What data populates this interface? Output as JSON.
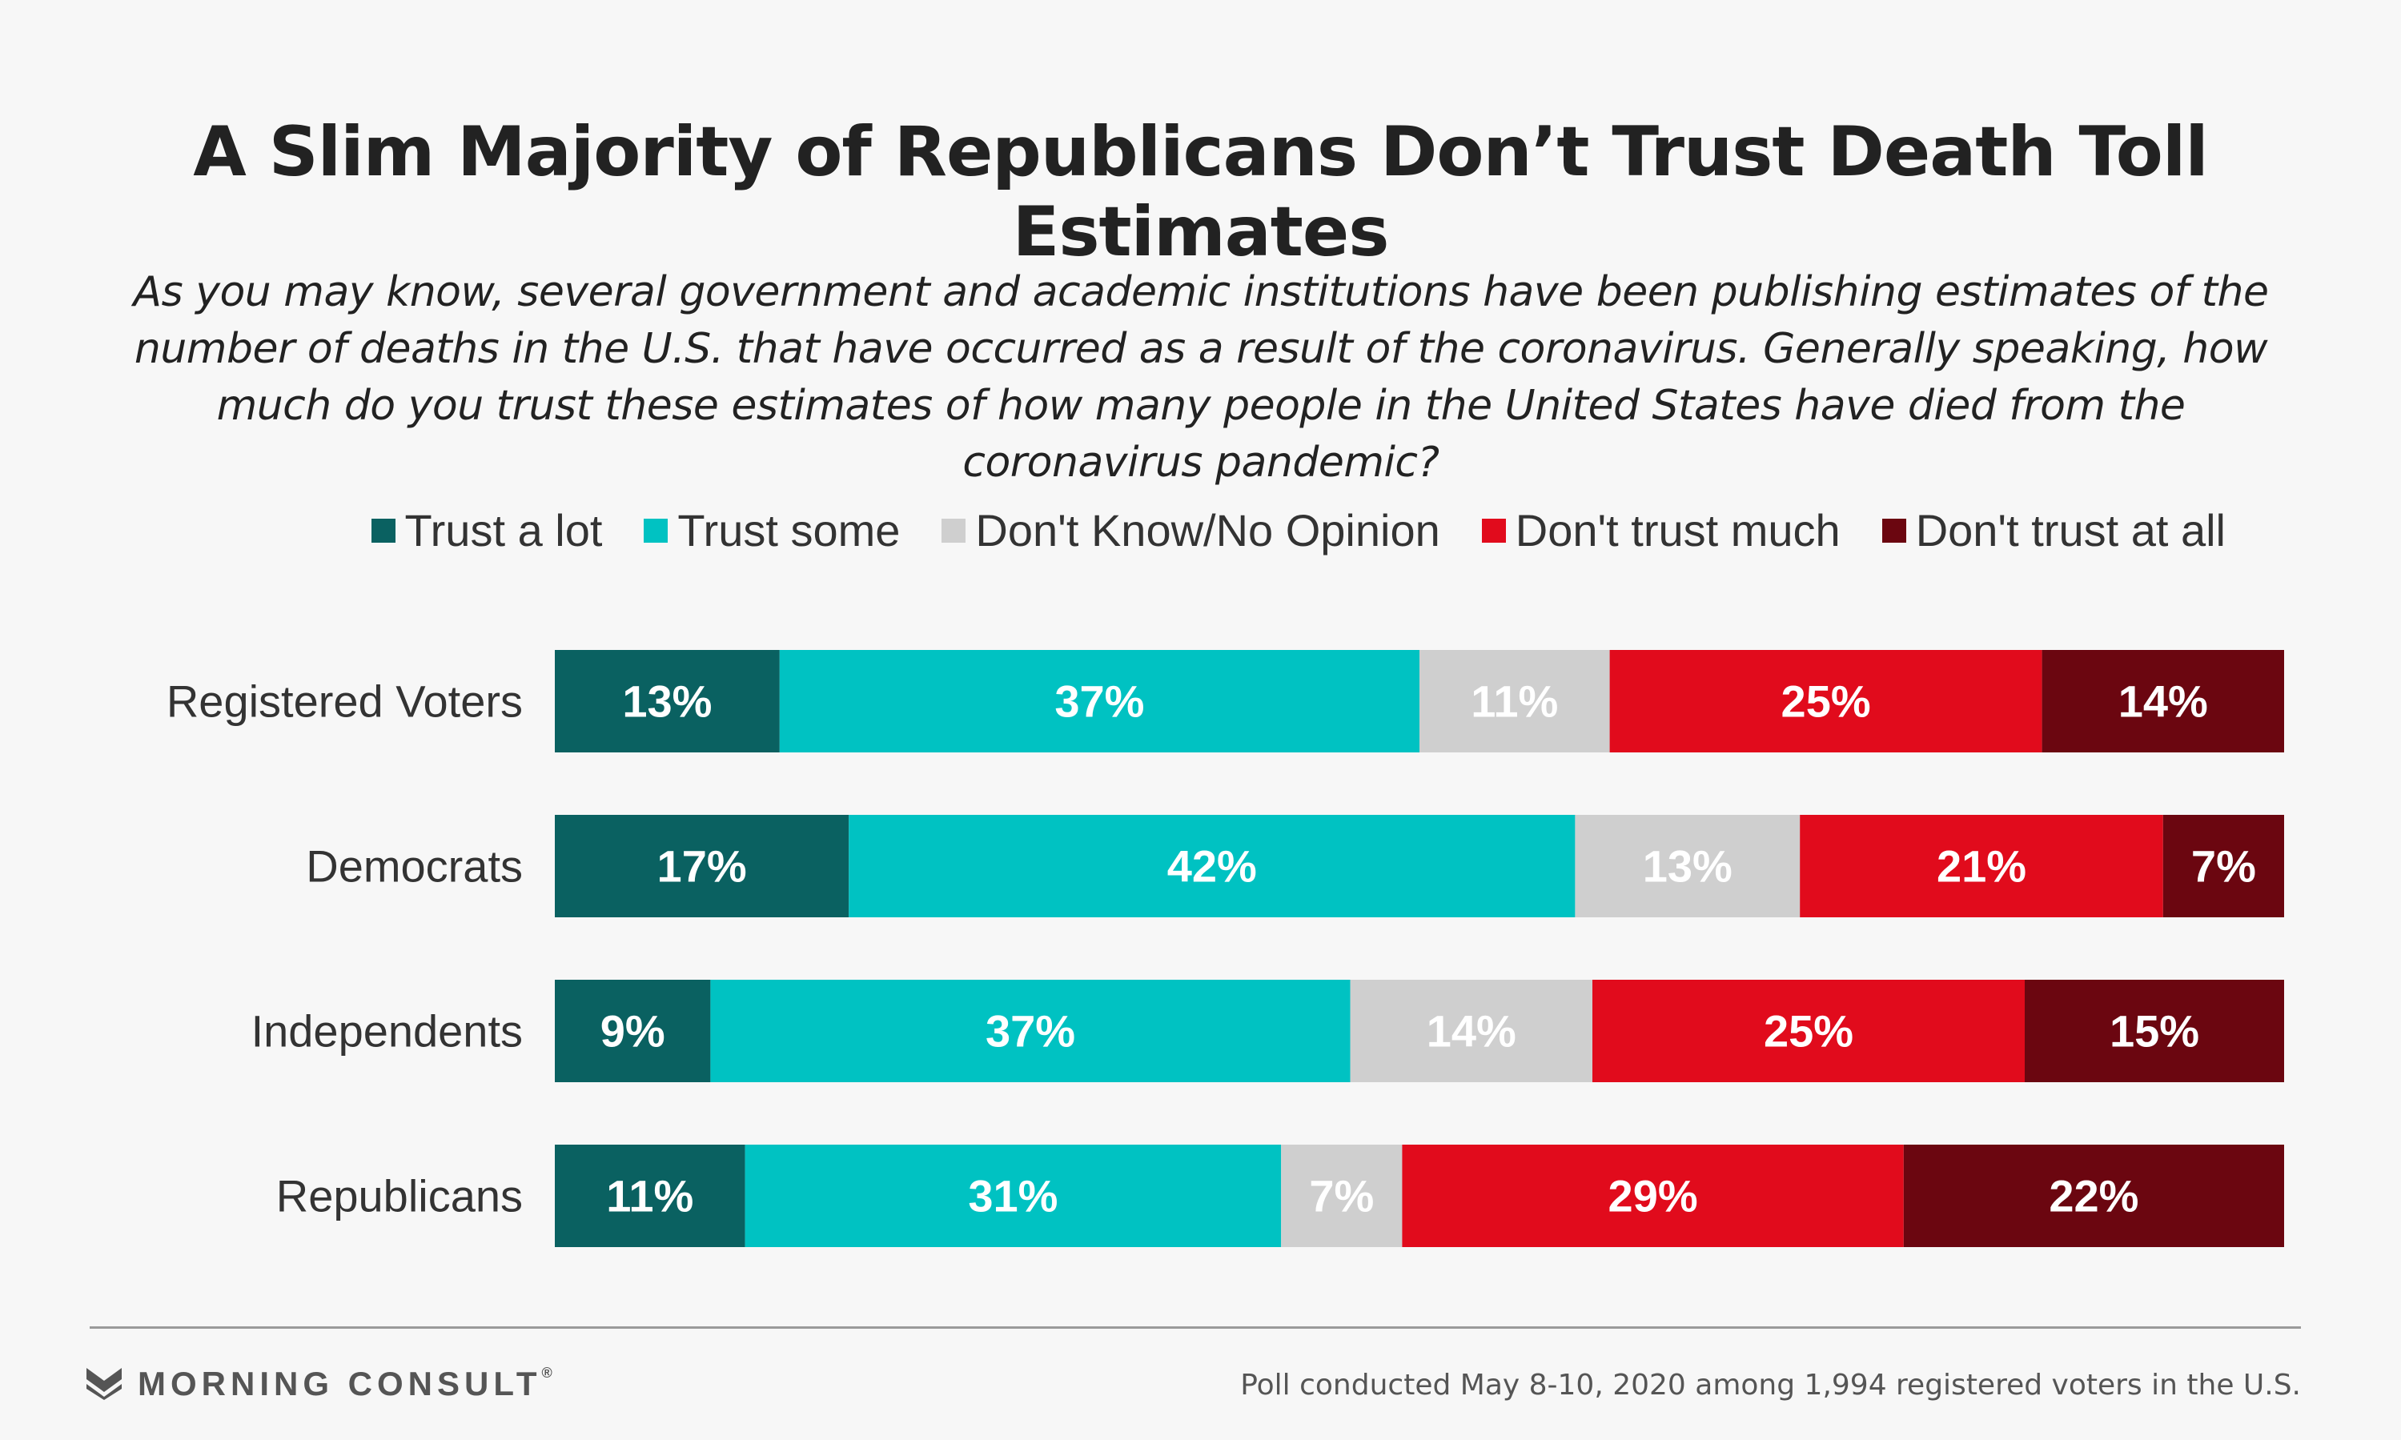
{
  "chart_data": {
    "type": "bar",
    "orientation": "horizontal",
    "stacked": true,
    "title": "A Slim Majority of Republicans Don’t Trust Death Toll Estimates",
    "subtitle": "As you may know, several government and academic institutions have been publishing estimates of the number of deaths in the U.S. that have occurred as a result of the coronavirus. Generally speaking, how much do you trust these estimates of how many people in the United States have died from the coronavirus pandemic?",
    "categories": [
      "Registered Voters",
      "Democrats",
      "Independents",
      "Republicans"
    ],
    "series": [
      {
        "name": "Trust a lot",
        "color": "#0a6161",
        "label_color": "#ffffff",
        "values": [
          13,
          17,
          9,
          11
        ]
      },
      {
        "name": "Trust some",
        "color": "#00c2c2",
        "label_color": "#ffffff",
        "values": [
          37,
          42,
          37,
          31
        ]
      },
      {
        "name": "Don't Know/No Opinion",
        "color": "#cfcfcf",
        "label_color": "#ffffff",
        "values": [
          11,
          13,
          14,
          7
        ]
      },
      {
        "name": "Don't trust much",
        "color": "#e10b1c",
        "label_color": "#ffffff",
        "values": [
          25,
          21,
          25,
          29
        ]
      },
      {
        "name": "Don't trust at all",
        "color": "#6b0610",
        "label_color": "#ffffff",
        "values": [
          14,
          7,
          15,
          22
        ]
      }
    ],
    "value_suffix": "%",
    "legend_position": "top",
    "grid": false
  },
  "footer": {
    "logo_text": "MORNING CONSULT",
    "logo_tm": "®",
    "source": "Poll conducted  May 8-10, 2020 among 1,994 registered voters in the U.S."
  }
}
